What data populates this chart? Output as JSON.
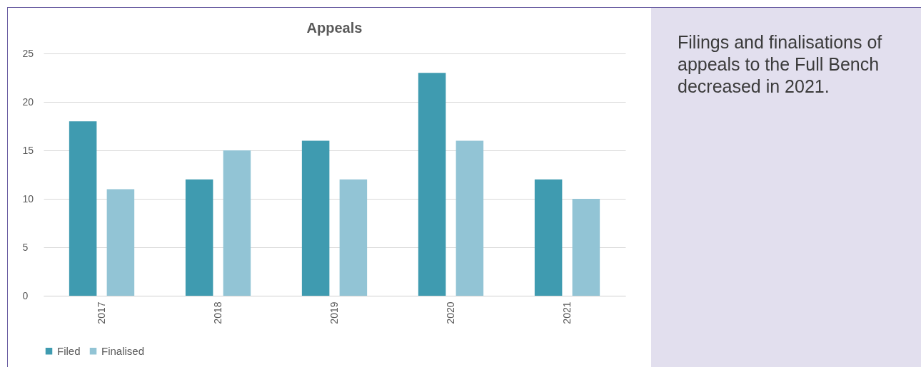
{
  "chart_data": {
    "type": "bar",
    "title": "Appeals",
    "categories": [
      "2017",
      "2018",
      "2019",
      "2020",
      "2021"
    ],
    "series": [
      {
        "name": "Filed",
        "color": "#3f9bb0",
        "values": [
          18,
          12,
          16,
          23,
          12
        ]
      },
      {
        "name": "Finalised",
        "color": "#92c4d5",
        "values": [
          11,
          15,
          12,
          16,
          10
        ]
      }
    ],
    "ylim": [
      0,
      25
    ],
    "yticks": [
      0,
      5,
      10,
      15,
      20,
      25
    ],
    "grid": "y",
    "legend": "bottom",
    "annotations": [
      "Filings and finalisations of appeals to the Full Bench decreased in 2021."
    ]
  }
}
